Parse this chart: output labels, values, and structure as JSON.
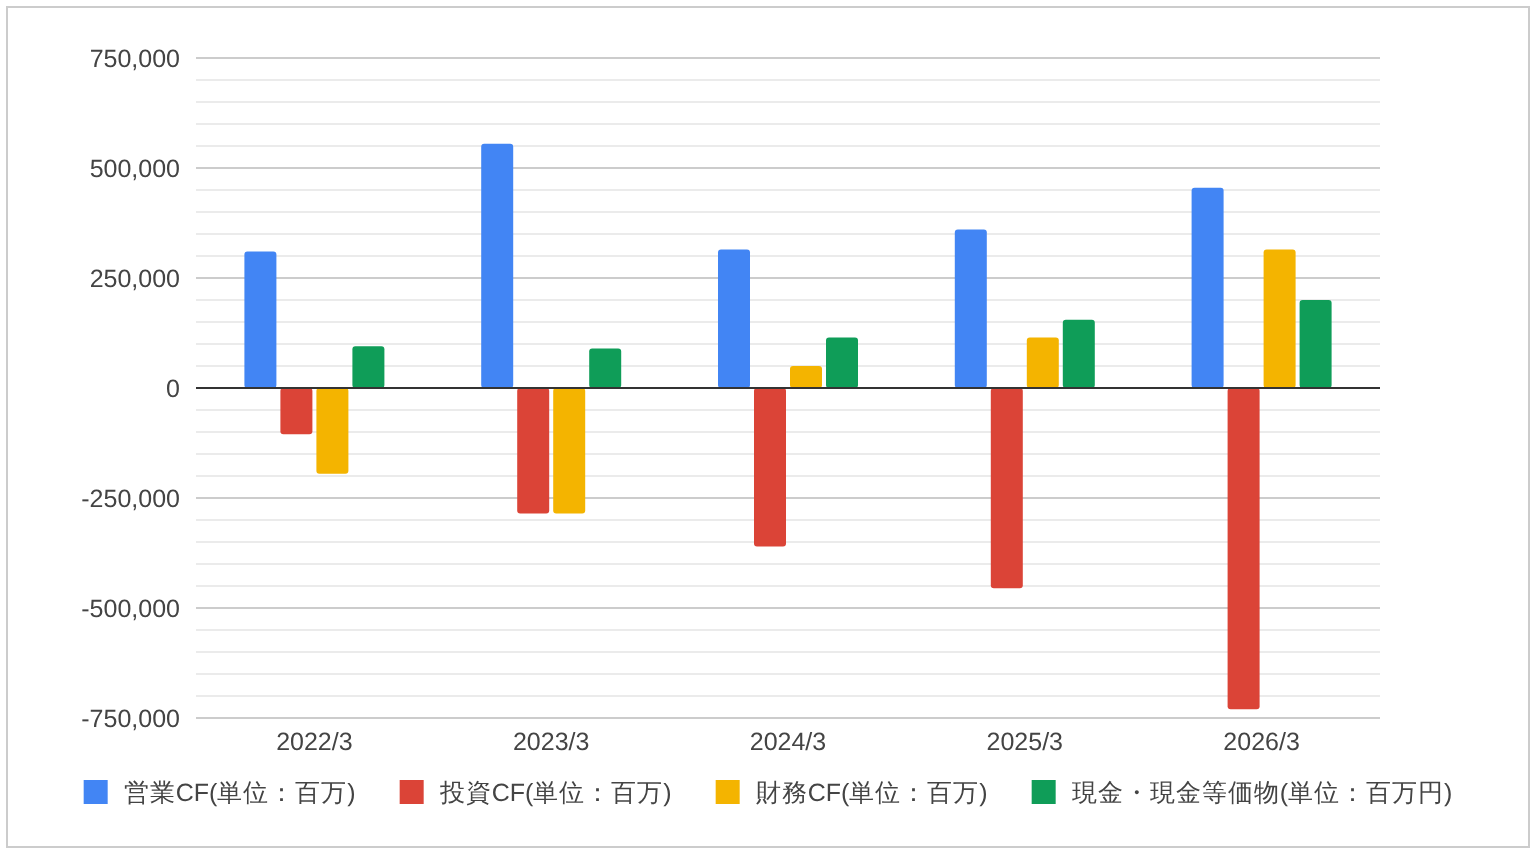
{
  "chart_data": {
    "type": "bar",
    "categories": [
      "2022/3",
      "2023/3",
      "2024/3",
      "2025/3",
      "2026/3"
    ],
    "series": [
      {
        "name": "営業CF(単位：百万)",
        "color": "#4285f4",
        "values": [
          310000,
          555000,
          315000,
          360000,
          455000
        ]
      },
      {
        "name": "投資CF(単位：百万)",
        "color": "#db4437",
        "values": [
          -105000,
          -285000,
          -360000,
          -455000,
          -730000
        ]
      },
      {
        "name": "財務CF(単位：百万)",
        "color": "#f4b400",
        "values": [
          -195000,
          -285000,
          50000,
          115000,
          315000
        ]
      },
      {
        "name": "現金・現金等価物(単位：百万円)",
        "color": "#0f9d58",
        "values": [
          95000,
          90000,
          115000,
          155000,
          200000
        ]
      }
    ],
    "ylim": [
      -750000,
      750000
    ],
    "yticks": [
      {
        "value": -750000,
        "label": "-750,000"
      },
      {
        "value": -700000,
        "label": null
      },
      {
        "value": -650000,
        "label": null
      },
      {
        "value": -600000,
        "label": null
      },
      {
        "value": -550000,
        "label": null
      },
      {
        "value": -500000,
        "label": "-500,000"
      },
      {
        "value": -450000,
        "label": null
      },
      {
        "value": -400000,
        "label": null
      },
      {
        "value": -350000,
        "label": null
      },
      {
        "value": -300000,
        "label": null
      },
      {
        "value": -250000,
        "label": "-250,000"
      },
      {
        "value": -200000,
        "label": null
      },
      {
        "value": -150000,
        "label": null
      },
      {
        "value": -100000,
        "label": null
      },
      {
        "value": -50000,
        "label": null
      },
      {
        "value": 0,
        "label": "0"
      },
      {
        "value": 50000,
        "label": null
      },
      {
        "value": 100000,
        "label": null
      },
      {
        "value": 150000,
        "label": null
      },
      {
        "value": 200000,
        "label": null
      },
      {
        "value": 250000,
        "label": "250,000"
      },
      {
        "value": 300000,
        "label": null
      },
      {
        "value": 350000,
        "label": null
      },
      {
        "value": 400000,
        "label": null
      },
      {
        "value": 450000,
        "label": null
      },
      {
        "value": 500000,
        "label": "500,000"
      },
      {
        "value": 550000,
        "label": null
      },
      {
        "value": 600000,
        "label": null
      },
      {
        "value": 650000,
        "label": null
      },
      {
        "value": 700000,
        "label": null
      },
      {
        "value": 750000,
        "label": "750,000"
      }
    ],
    "grid": "y",
    "legend": "bottom"
  }
}
